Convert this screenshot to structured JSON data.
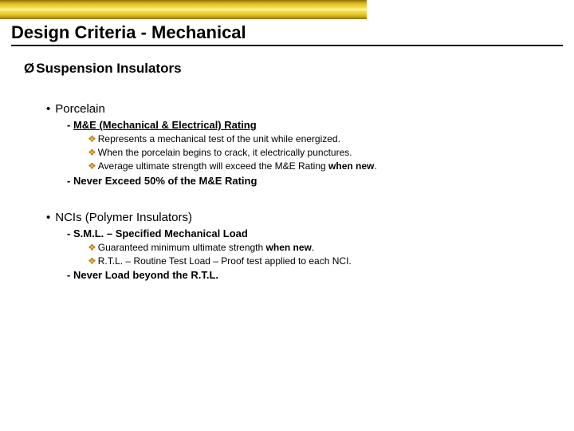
{
  "colors": {
    "diamond": "#c97f10",
    "bar_gradient": [
      "#8a6d0a",
      "#c9a512",
      "#e8c830",
      "#f5da50",
      "#fff89a"
    ],
    "text": "#111111",
    "underline": "#000000",
    "background": "#ffffff"
  },
  "title": "Design Criteria - Mechanical",
  "section_header": "Suspension Insulators",
  "porcelain": {
    "heading": "Porcelain",
    "me_heading": "M&E (Mechanical & Electrical) Rating",
    "points": [
      "Represents a mechanical test of the unit while energized.",
      "When the porcelain begins to crack, it electrically punctures.",
      {
        "prefix": "Average ultimate strength will exceed the M&E Rating ",
        "bold": "when new",
        "suffix": "."
      }
    ],
    "never": "Never Exceed 50% of the M&E Rating"
  },
  "nci": {
    "heading": "NCIs (Polymer Insulators)",
    "sml_heading": "S.M.L. – Specified Mechanical Load",
    "points": [
      {
        "prefix": "Guaranteed minimum ultimate strength ",
        "bold": "when new",
        "suffix": "."
      },
      "R.T.L. – Routine Test Load – Proof test applied to each NCI."
    ],
    "never": "Never Load beyond the R.T.L."
  },
  "glyphs": {
    "arrow": "Ø",
    "bullet": "•",
    "dash": "-",
    "diamond": "❖"
  }
}
